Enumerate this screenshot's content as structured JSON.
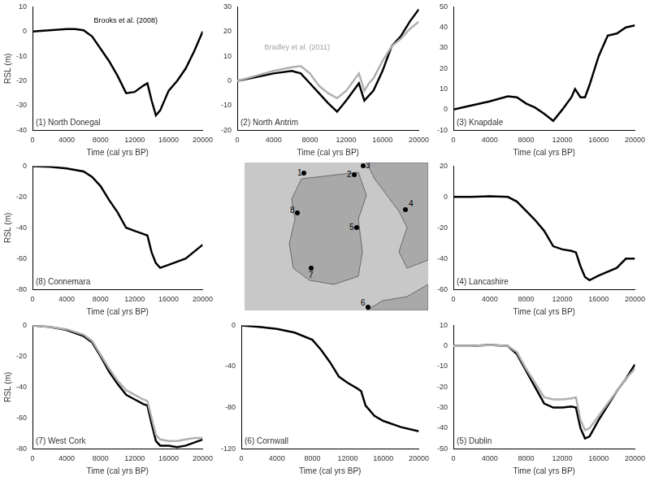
{
  "chart_data": [
    {
      "type": "line",
      "title": "(1) North Donegal",
      "xlabel": "Time (cal yrs BP)",
      "ylabel": "RSL (m)",
      "x": [
        0,
        2000,
        4000,
        5000,
        6000,
        7000,
        8000,
        9000,
        10000,
        11000,
        12000,
        13000,
        13500,
        14000,
        14500,
        15000,
        16000,
        17000,
        18000,
        19000,
        20000
      ],
      "series": [
        {
          "color": "#000000",
          "values": [
            0,
            0.5,
            1,
            1,
            0.5,
            -2,
            -7,
            -12,
            -18,
            -25,
            -24.5,
            -22,
            -21,
            -28,
            -34,
            -32,
            -24,
            -20,
            -15,
            -8,
            0
          ]
        }
      ],
      "xlim": [
        0,
        20000
      ],
      "xticks": [
        0,
        4000,
        8000,
        12000,
        16000,
        20000
      ],
      "ylim": [
        -40,
        10
      ],
      "yticks": [
        -40,
        -30,
        -20,
        -10,
        0,
        10
      ],
      "grid": false,
      "annotations": [
        {
          "text": "Brooks et al. (2008)",
          "x": 7200,
          "y": 3,
          "color": "#000000"
        }
      ]
    },
    {
      "type": "line",
      "title": "(2) North Antrim",
      "xlabel": "Time (cal yrs BP)",
      "x": [
        0,
        2000,
        4000,
        6000,
        7000,
        8000,
        9000,
        10000,
        11000,
        12000,
        13000,
        13400,
        14000,
        14500,
        15000,
        16000,
        17000,
        18000,
        19000,
        20000
      ],
      "series": [
        {
          "color": "#000000",
          "values": [
            0,
            1.5,
            3,
            4,
            3,
            -1,
            -5,
            -9,
            -12.5,
            -8,
            -3,
            -1,
            -8,
            -6,
            -4,
            4,
            14,
            18,
            24,
            29
          ]
        },
        {
          "color": "#b0b0b0",
          "values": [
            0,
            2,
            4,
            5.5,
            6,
            3,
            -2,
            -5,
            -7,
            -4,
            1,
            3,
            -4,
            -1,
            1,
            8,
            14,
            17,
            21,
            24
          ]
        }
      ],
      "xlim": [
        0,
        20000
      ],
      "xticks": [
        0,
        4000,
        8000,
        12000,
        16000,
        20000
      ],
      "ylim": [
        -20,
        30
      ],
      "yticks": [
        -20,
        -10,
        0,
        10,
        20,
        30
      ],
      "grid": false,
      "annotations": [
        {
          "text": "Bradley et al. (2011)",
          "x": 3000,
          "y": 12,
          "color": "#a0a0a0"
        }
      ]
    },
    {
      "type": "line",
      "title": "(3) Knapdale",
      "xlabel": "Time (cal yrs BP)",
      "x": [
        0,
        2000,
        4000,
        6000,
        7000,
        8000,
        9000,
        10000,
        11000,
        12000,
        13000,
        13400,
        14000,
        14500,
        15000,
        16000,
        17000,
        18000,
        19000,
        20000
      ],
      "series": [
        {
          "color": "#000000",
          "values": [
            0,
            2,
            4,
            6.5,
            6,
            3,
            1,
            -2,
            -5.5,
            0,
            6,
            10,
            6,
            6,
            12,
            26,
            36,
            37,
            40,
            41
          ]
        }
      ],
      "xlim": [
        0,
        20000
      ],
      "xticks": [
        0,
        4000,
        8000,
        12000,
        16000,
        20000
      ],
      "ylim": [
        -10,
        50
      ],
      "yticks": [
        -10,
        0,
        10,
        20,
        30,
        40,
        50
      ],
      "grid": false
    },
    {
      "type": "line",
      "title": "(8) Connemara",
      "xlabel": "Time (cal yrs BP)",
      "ylabel": "RSL (m)",
      "x": [
        0,
        2000,
        4000,
        6000,
        7000,
        8000,
        9000,
        10000,
        11000,
        12000,
        13000,
        13500,
        14000,
        14500,
        15000,
        16000,
        18000,
        20000
      ],
      "series": [
        {
          "color": "#000000",
          "values": [
            0,
            -0.5,
            -1.5,
            -3.5,
            -7,
            -13,
            -22,
            -30,
            -40,
            -42,
            -44,
            -45,
            -56,
            -63,
            -66,
            -64,
            -60,
            -51
          ]
        }
      ],
      "xlim": [
        0,
        20000
      ],
      "xticks": [
        0,
        4000,
        8000,
        12000,
        16000,
        20000
      ],
      "ylim": [
        -80,
        0
      ],
      "yticks": [
        -80,
        -60,
        -40,
        -20,
        0
      ],
      "grid": false
    },
    {
      "type": "line",
      "title": "(4) Lancashire",
      "xlabel": "Time (cal yrs BP)",
      "x": [
        0,
        2000,
        4000,
        6000,
        7000,
        8000,
        9000,
        10000,
        11000,
        12000,
        13000,
        13500,
        14000,
        14500,
        15000,
        16000,
        18000,
        19000,
        20000
      ],
      "series": [
        {
          "color": "#000000",
          "values": [
            0,
            0,
            0.5,
            0,
            -3,
            -9,
            -15,
            -22,
            -32,
            -34,
            -35,
            -36,
            -45,
            -52,
            -54,
            -51,
            -46,
            -40,
            -40
          ]
        }
      ],
      "xlim": [
        0,
        20000
      ],
      "xticks": [
        0,
        4000,
        8000,
        12000,
        16000,
        20000
      ],
      "ylim": [
        -60,
        20
      ],
      "yticks": [
        -60,
        -40,
        -20,
        0,
        20
      ],
      "grid": false
    },
    {
      "type": "line",
      "title": "(7) West Cork",
      "xlabel": "Time (cal yrs BP)",
      "ylabel": "RSL (m)",
      "x": [
        0,
        2000,
        4000,
        6000,
        7000,
        8000,
        9000,
        10000,
        11000,
        12000,
        13000,
        13500,
        14000,
        14500,
        15000,
        16000,
        17000,
        18000,
        19000,
        20000
      ],
      "series": [
        {
          "color": "#000000",
          "values": [
            0,
            -1,
            -3,
            -7,
            -11,
            -20,
            -30,
            -38,
            -45,
            -48,
            -51,
            -52,
            -64,
            -75,
            -78,
            -78,
            -79,
            -78,
            -76,
            -74
          ]
        },
        {
          "color": "#b0b0b0",
          "values": [
            0,
            -1,
            -2.5,
            -6,
            -10,
            -19,
            -28,
            -36,
            -42,
            -45,
            -48,
            -49,
            -60,
            -71,
            -74,
            -75,
            -75,
            -74,
            -73,
            -73
          ]
        }
      ],
      "xlim": [
        0,
        20000
      ],
      "xticks": [
        0,
        4000,
        8000,
        12000,
        16000,
        20000
      ],
      "ylim": [
        -80,
        0
      ],
      "yticks": [
        -80,
        -60,
        -40,
        -20,
        0
      ],
      "grid": false
    },
    {
      "type": "line",
      "title": "(6) Cornwall",
      "xlabel": "Time (cal yrs BP)",
      "x": [
        0,
        2000,
        4000,
        6000,
        8000,
        9000,
        10000,
        11000,
        12000,
        13000,
        13500,
        14000,
        15000,
        16000,
        18000,
        20000
      ],
      "series": [
        {
          "color": "#000000",
          "values": [
            0,
            -1.5,
            -3.5,
            -7,
            -14,
            -24,
            -36,
            -50,
            -56,
            -61,
            -64,
            -78,
            -88,
            -93,
            -99,
            -103
          ]
        }
      ],
      "xlim": [
        0,
        20000
      ],
      "xticks": [
        0,
        4000,
        8000,
        12000,
        16000,
        20000
      ],
      "ylim": [
        -120,
        0
      ],
      "yticks": [
        -120,
        -80,
        -40,
        0
      ],
      "grid": false
    },
    {
      "type": "line",
      "title": "(5) Dublin",
      "xlabel": "Time (cal yrs BP)",
      "x": [
        0,
        2000,
        4000,
        6000,
        7000,
        8000,
        9000,
        10000,
        11000,
        12000,
        13000,
        13500,
        14000,
        14500,
        15000,
        16000,
        17000,
        18000,
        19000,
        20000
      ],
      "series": [
        {
          "color": "#000000",
          "values": [
            0,
            0,
            0.5,
            0,
            -4,
            -12,
            -20,
            -28,
            -30,
            -30,
            -29.5,
            -30,
            -40,
            -45,
            -44,
            -36,
            -29,
            -22,
            -16,
            -9
          ]
        },
        {
          "color": "#b0b0b0",
          "values": [
            0,
            0,
            0.5,
            0,
            -3,
            -11,
            -18,
            -25,
            -26,
            -26,
            -25.5,
            -25,
            -36,
            -41,
            -40,
            -34,
            -28,
            -22,
            -16,
            -11
          ]
        }
      ],
      "xlim": [
        0,
        20000
      ],
      "xticks": [
        0,
        4000,
        8000,
        12000,
        16000,
        20000
      ],
      "ylim": [
        -50,
        10
      ],
      "yticks": [
        -50,
        -40,
        -30,
        -20,
        -10,
        0,
        10
      ],
      "grid": false
    }
  ],
  "map": {
    "point_labels": [
      "1",
      "2",
      "3",
      "4",
      "5",
      "6",
      "7",
      "8"
    ]
  }
}
